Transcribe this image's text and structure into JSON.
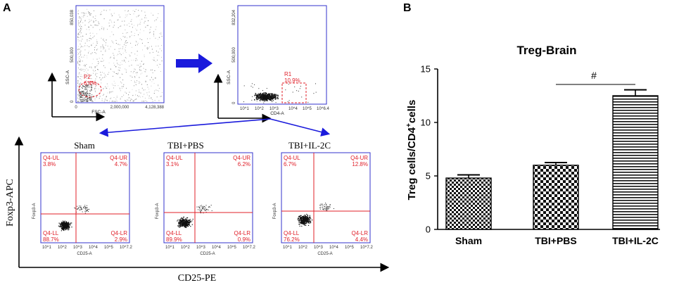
{
  "panel_a": {
    "letter": "A",
    "plot1": {
      "y_label": "SSC-A",
      "x_label": "FSC-A",
      "y_ticks": [
        "0",
        "500,000",
        "850,038"
      ],
      "x_ticks": [
        "0",
        "2,000,000",
        "4,128,388"
      ],
      "gate_name": "P2",
      "gate_pct": "6.4%"
    },
    "plot2": {
      "y_label": "SSC-A",
      "x_label": "CD4-A",
      "y_ticks": [
        "0",
        "500,000",
        "832,204"
      ],
      "x_ticks": [
        "10^1",
        "10^2",
        "10^3",
        "10^4",
        "10^5",
        "10^6.4"
      ],
      "gate_name": "R1",
      "gate_pct": "10.9%"
    },
    "quad_y_axis": "Foxp3-APC",
    "quad_x_axis": "CD25-PE",
    "quadrants": [
      {
        "title": "Sham",
        "ul": "Q4-UL",
        "ul_pct": "3.8%",
        "ur": "Q4-UR",
        "ur_pct": "4.7%",
        "ll": "Q4-LL",
        "ll_pct": "88.7%",
        "lr": "Q4-LR",
        "lr_pct": "2.9%",
        "y_label": "Foxp3-A",
        "x_label": "CD25-A"
      },
      {
        "title": "TBI+PBS",
        "ul": "Q4-UL",
        "ul_pct": "3.1%",
        "ur": "Q4-UR",
        "ur_pct": "6.2%",
        "ll": "Q4-LL",
        "ll_pct": "89.9%",
        "lr": "Q4-LR",
        "lr_pct": "0.9%",
        "y_label": "Foxp3-A",
        "x_label": "CD25-A"
      },
      {
        "title": "TBI+IL-2C",
        "ul": "Q4-UL",
        "ul_pct": "6.7%",
        "ur": "Q4-UR",
        "ur_pct": "12.8%",
        "ll": "Q4-LL",
        "ll_pct": "76.2%",
        "lr": "Q4-LR",
        "lr_pct": "4.4%",
        "y_label": "Foxp3-A",
        "x_label": "CD25-A"
      }
    ],
    "quad_x_ticks": [
      "10^1",
      "10^2",
      "10^3",
      "10^4",
      "10^5",
      "10^7.2"
    ],
    "colors": {
      "frame": "#3333cc",
      "gate": "#e0202a",
      "arrow": "#1a1adc"
    }
  },
  "panel_b": {
    "letter": "B",
    "significance": "#"
  },
  "chart_data": {
    "type": "bar",
    "title": "Treg-Brain",
    "categories": [
      "Sham",
      "TBI+PBS",
      "TBI+IL-2C"
    ],
    "values": [
      4.8,
      6.0,
      12.5
    ],
    "errors": [
      0.3,
      0.25,
      0.55
    ],
    "patterns": [
      "checker-fine",
      "checker-coarse",
      "horizontal-stripes"
    ],
    "xlabel": "",
    "ylabel": "Treg cells/CD4+cells",
    "ylim": [
      0,
      15
    ],
    "yticks": [
      "0",
      "5",
      "10",
      "15"
    ],
    "grid": false,
    "legend": "none"
  }
}
